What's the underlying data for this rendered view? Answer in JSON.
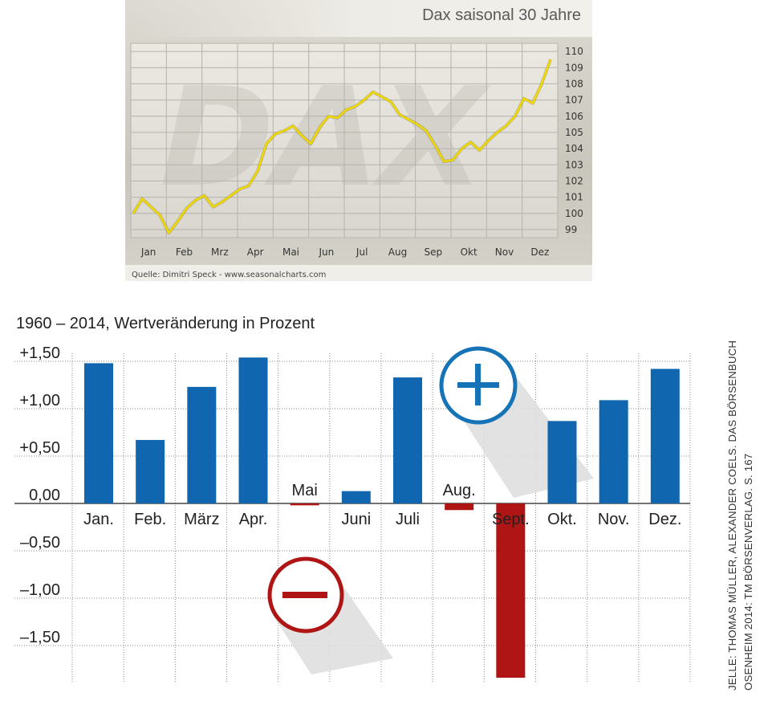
{
  "chart_data": [
    {
      "type": "line",
      "title": "Dax saisonal 30 Jahre",
      "source": "Quelle: Dimitri Speck - www.seasonalcharts.com",
      "x_tick_labels": [
        "Jan",
        "Feb",
        "Mrz",
        "Apr",
        "Mai",
        "Jun",
        "Jul",
        "Aug",
        "Sep",
        "Okt",
        "Nov",
        "Dez"
      ],
      "y_tick_labels": [
        "110",
        "109",
        "108",
        "107",
        "106",
        "105",
        "104",
        "103",
        "102",
        "101",
        "100",
        "99"
      ],
      "ylim": [
        98.5,
        110.5
      ],
      "grid": true,
      "line_color": "#f0d800",
      "series": [
        {
          "values": [
            100.0,
            100.9,
            100.4,
            99.9,
            98.8,
            99.5,
            100.3,
            100.8,
            101.1,
            100.4,
            100.7,
            101.1,
            101.5,
            101.7,
            102.6,
            104.3,
            104.9,
            105.1,
            105.4,
            104.8,
            104.3,
            105.3,
            106.0,
            105.9,
            106.4,
            106.6,
            107.0,
            107.5,
            107.2,
            106.9,
            106.1,
            105.8,
            105.5,
            105.1,
            104.2,
            103.2,
            103.3,
            104.0,
            104.4,
            103.9,
            104.5,
            105.0,
            105.4,
            106.0,
            107.1,
            106.8,
            108.0,
            109.5
          ]
        }
      ]
    },
    {
      "type": "bar",
      "title": "1960 – 2014, Wertveränderung in Prozent",
      "categories": [
        "Jan.",
        "Feb.",
        "März",
        "Apr.",
        "Mai",
        "Juni",
        "Juli",
        "Aug.",
        "Sept.",
        "Okt.",
        "Nov.",
        "Dez."
      ],
      "values": [
        1.48,
        0.67,
        1.23,
        1.54,
        -0.02,
        0.13,
        1.33,
        -0.07,
        -1.84,
        0.87,
        1.09,
        1.42
      ],
      "y_tick_labels": [
        "+1,50",
        "+1,00",
        "+0,50",
        "0,00",
        "–0,50",
        "–1,00",
        "–1,50"
      ],
      "ylim": [
        -1.9,
        1.6
      ],
      "grid": true,
      "positive_color": "#1067b0",
      "negative_color": "#b01515"
    }
  ],
  "credit_lines": [
    "JELLE: THOMAS MÜLLER, ALEXANDER COELS. DAS BÖRSENBUCH",
    "OSENHEIM 2014: TM BÖRSENVERLAG. S. 167"
  ],
  "plus_symbol": "+",
  "minus_symbol": "−"
}
